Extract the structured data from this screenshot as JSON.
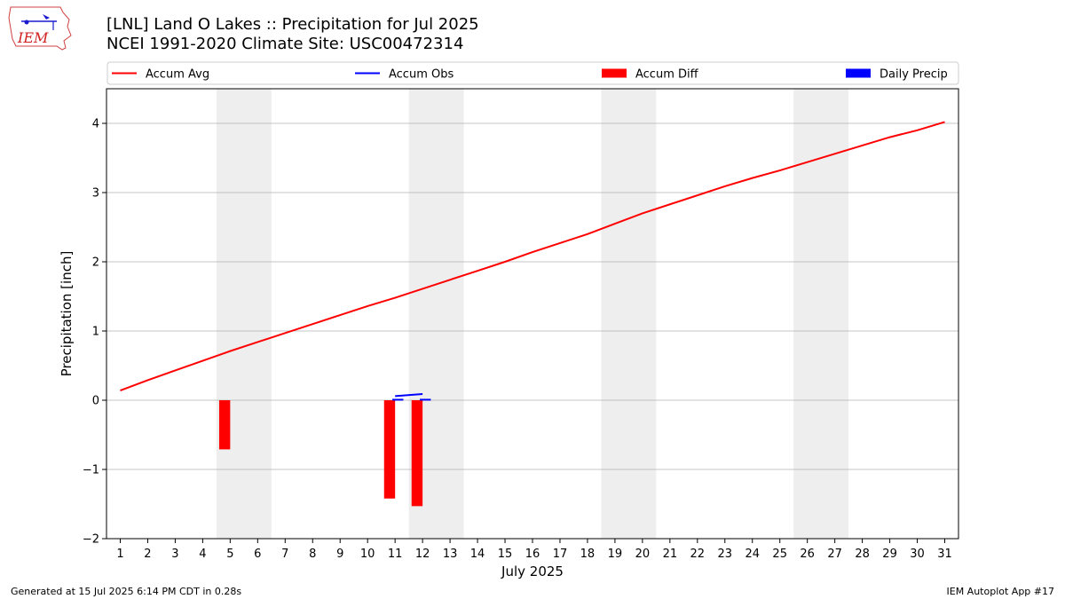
{
  "header": {
    "title_line1": "[LNL] Land O Lakes :: Precipitation for Jul 2025",
    "title_line2": "NCEI 1991-2020 Climate Site: USC00472314",
    "logo_text": "IEM"
  },
  "footer": {
    "generated": "Generated at 15 Jul 2025 6:14 PM CDT in 0.28s",
    "app": "IEM Autoplot App #17"
  },
  "colors": {
    "accum_avg": "#ff0000",
    "accum_obs": "#0000ff",
    "accum_diff": "#ff0000",
    "daily_precip": "#0000ff",
    "weekend_shade": "#eeeeee",
    "grid": "#b0b0b0"
  },
  "chart_data": {
    "type": "line",
    "xlabel": "July 2025",
    "ylabel": "Precipitation [inch]",
    "x": [
      1,
      2,
      3,
      4,
      5,
      6,
      7,
      8,
      9,
      10,
      11,
      12,
      13,
      14,
      15,
      16,
      17,
      18,
      19,
      20,
      21,
      22,
      23,
      24,
      25,
      26,
      27,
      28,
      29,
      30,
      31
    ],
    "xlim": [
      0.5,
      31.5
    ],
    "ylim": [
      -2,
      4.5
    ],
    "yticks": [
      -2,
      -1,
      0,
      1,
      2,
      3,
      4
    ],
    "ytick_labels": [
      "−2",
      "−1",
      "0",
      "1",
      "2",
      "3",
      "4"
    ],
    "grid": "y",
    "legend_placement": "top",
    "weekend_shading": [
      [
        4.5,
        6.5
      ],
      [
        11.5,
        13.5
      ],
      [
        18.5,
        20.5
      ],
      [
        25.5,
        27.5
      ]
    ],
    "series": [
      {
        "name": "Accum Avg",
        "kind": "line",
        "x": [
          1,
          2,
          3,
          4,
          5,
          6,
          7,
          8,
          9,
          10,
          11,
          12,
          13,
          14,
          15,
          16,
          17,
          18,
          19,
          20,
          21,
          22,
          23,
          24,
          25,
          26,
          27,
          28,
          29,
          30,
          31
        ],
        "values": [
          0.14,
          0.29,
          0.43,
          0.57,
          0.71,
          0.84,
          0.97,
          1.1,
          1.23,
          1.36,
          1.48,
          1.61,
          1.74,
          1.87,
          2.0,
          2.14,
          2.27,
          2.4,
          2.55,
          2.7,
          2.83,
          2.96,
          3.09,
          3.21,
          3.32,
          3.44,
          3.56,
          3.68,
          3.8,
          3.9,
          4.02
        ]
      },
      {
        "name": "Accum Obs",
        "kind": "line",
        "x": [
          11,
          12
        ],
        "values": [
          0.06,
          0.09
        ]
      },
      {
        "name": "Accum Diff",
        "kind": "bar",
        "x": [
          5,
          11,
          12
        ],
        "values": [
          -0.71,
          -1.42,
          -1.53
        ]
      },
      {
        "name": "Daily Precip",
        "kind": "bar",
        "x": [
          11,
          12
        ],
        "values": [
          0.02,
          0.02
        ]
      }
    ]
  }
}
